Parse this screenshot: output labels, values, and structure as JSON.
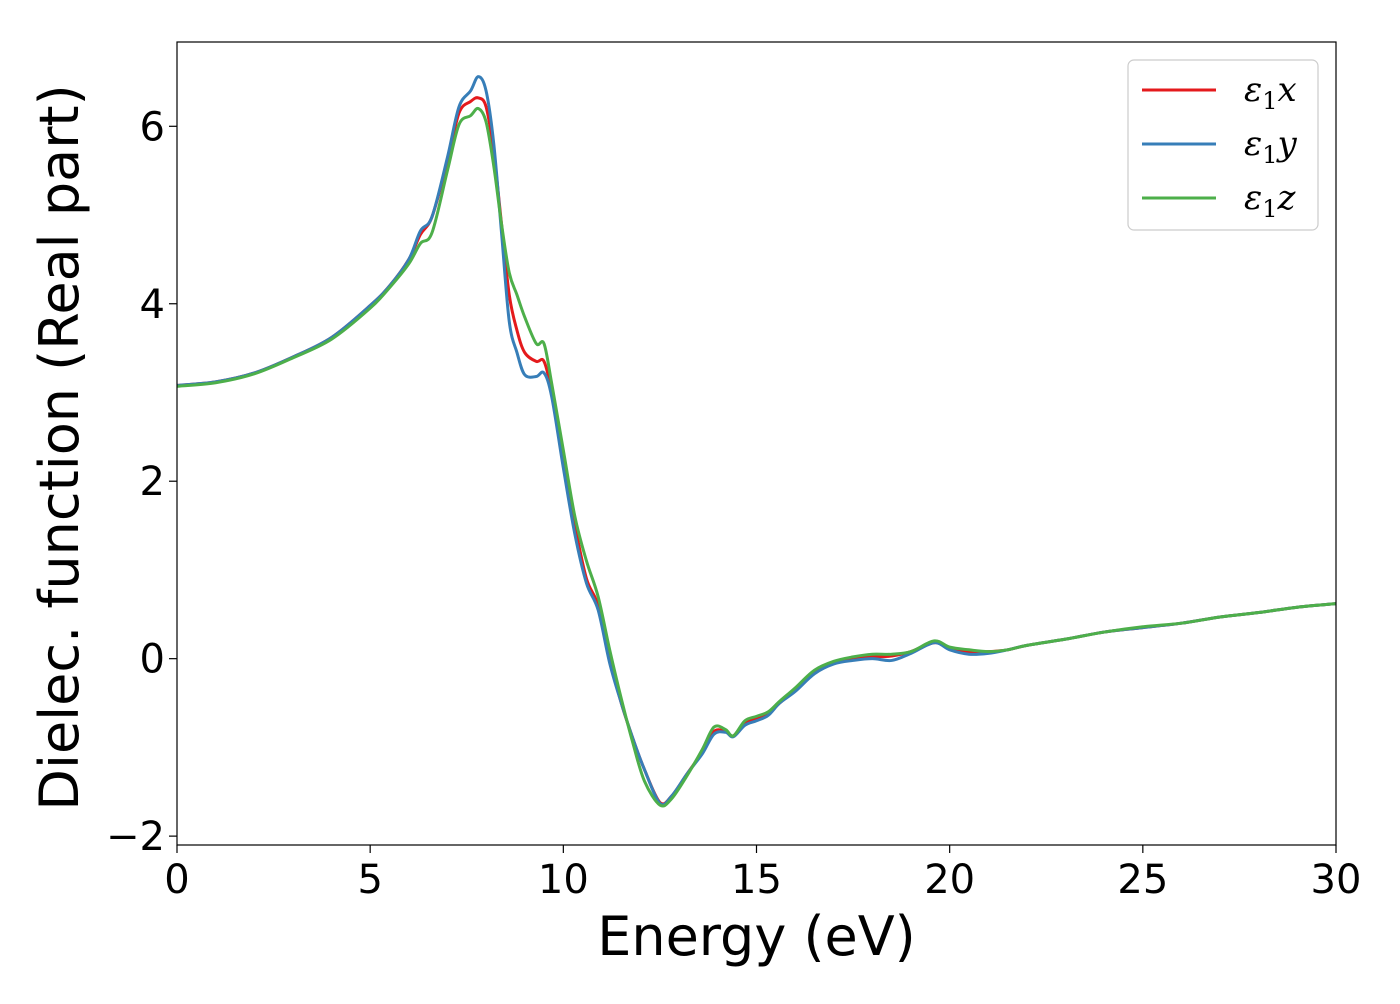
{
  "chart_data": {
    "type": "line",
    "title": "",
    "xlabel": "Energy (eV)",
    "ylabel": "Dielec. function (Real part)",
    "xlim": [
      0,
      30
    ],
    "ylim": [
      -2.1,
      6.95
    ],
    "xticks": [
      0,
      5,
      10,
      15,
      20,
      25,
      30
    ],
    "xtick_labels": [
      "0",
      "5",
      "10",
      "15",
      "20",
      "25",
      "30"
    ],
    "yticks": [
      -2,
      0,
      2,
      4,
      6
    ],
    "ytick_labels": [
      "−2",
      "0",
      "2",
      "4",
      "6"
    ],
    "grid": false,
    "legend_position": "top-right",
    "colors": {
      "x": "#e41a1c",
      "y": "#377eb8",
      "z": "#4daf4a",
      "axis": "#000000",
      "legend_border": "#cccccc"
    },
    "series": [
      {
        "name": "ε1x",
        "legend_symbol": "ε",
        "legend_sub": "1",
        "legend_var": "x",
        "color": "#e41a1c",
        "x": [
          0,
          1,
          2,
          3,
          4,
          5,
          5.5,
          6,
          6.3,
          6.6,
          7.0,
          7.3,
          7.6,
          7.8,
          8.0,
          8.2,
          8.4,
          8.6,
          8.8,
          9.0,
          9.3,
          9.5,
          9.7,
          10.0,
          10.3,
          10.6,
          10.9,
          11.2,
          11.5,
          11.8,
          12.1,
          12.5,
          12.8,
          13.2,
          13.6,
          13.9,
          14.2,
          14.4,
          14.7,
          15.0,
          15.3,
          15.6,
          16.0,
          16.5,
          17.0,
          17.5,
          18.0,
          18.5,
          19.0,
          19.6,
          20.0,
          20.5,
          21.0,
          21.5,
          22.0,
          23.0,
          24.0,
          25.0,
          26.0,
          27.0,
          28.0,
          29.0,
          30.0
        ],
        "y": [
          3.08,
          3.12,
          3.22,
          3.4,
          3.62,
          3.98,
          4.2,
          4.5,
          4.78,
          4.98,
          5.6,
          6.15,
          6.28,
          6.32,
          6.22,
          5.7,
          4.9,
          4.1,
          3.7,
          3.45,
          3.35,
          3.35,
          3.0,
          2.2,
          1.5,
          0.9,
          0.6,
          0.0,
          -0.5,
          -0.9,
          -1.25,
          -1.62,
          -1.55,
          -1.3,
          -1.05,
          -0.82,
          -0.82,
          -0.87,
          -0.72,
          -0.68,
          -0.62,
          -0.5,
          -0.35,
          -0.15,
          -0.04,
          0.0,
          0.02,
          0.03,
          0.08,
          0.18,
          0.12,
          0.08,
          0.08,
          0.1,
          0.15,
          0.22,
          0.3,
          0.35,
          0.4,
          0.47,
          0.52,
          0.58,
          0.62
        ]
      },
      {
        "name": "ε1y",
        "legend_symbol": "ε",
        "legend_sub": "1",
        "legend_var": "y",
        "color": "#377eb8",
        "x": [
          0,
          1,
          2,
          3,
          4,
          5,
          5.5,
          6,
          6.3,
          6.6,
          7.0,
          7.3,
          7.6,
          7.8,
          8.0,
          8.2,
          8.4,
          8.6,
          8.8,
          9.0,
          9.3,
          9.5,
          9.7,
          10.0,
          10.3,
          10.6,
          10.9,
          11.2,
          11.5,
          11.8,
          12.1,
          12.5,
          12.8,
          13.2,
          13.6,
          13.9,
          14.2,
          14.4,
          14.7,
          15.0,
          15.3,
          15.6,
          16.0,
          16.5,
          17.0,
          17.5,
          18.0,
          18.5,
          19.0,
          19.6,
          20.0,
          20.5,
          21.0,
          21.5,
          22.0,
          23.0,
          24.0,
          25.0,
          26.0,
          27.0,
          28.0,
          29.0,
          30.0
        ],
        "y": [
          3.08,
          3.12,
          3.22,
          3.4,
          3.62,
          3.98,
          4.2,
          4.5,
          4.82,
          4.98,
          5.65,
          6.22,
          6.4,
          6.56,
          6.4,
          5.8,
          4.8,
          3.8,
          3.45,
          3.2,
          3.18,
          3.22,
          2.95,
          2.15,
          1.4,
          0.85,
          0.55,
          -0.05,
          -0.5,
          -0.9,
          -1.25,
          -1.63,
          -1.55,
          -1.3,
          -1.07,
          -0.85,
          -0.83,
          -0.88,
          -0.75,
          -0.7,
          -0.64,
          -0.5,
          -0.37,
          -0.17,
          -0.06,
          -0.02,
          0.0,
          -0.02,
          0.06,
          0.18,
          0.1,
          0.05,
          0.06,
          0.1,
          0.15,
          0.22,
          0.3,
          0.35,
          0.4,
          0.47,
          0.52,
          0.58,
          0.62
        ]
      },
      {
        "name": "ε1z",
        "legend_symbol": "ε",
        "legend_sub": "1",
        "legend_var": "z",
        "color": "#4daf4a",
        "x": [
          0,
          1,
          2,
          3,
          4,
          5,
          5.5,
          6,
          6.3,
          6.6,
          7.0,
          7.3,
          7.6,
          7.8,
          8.0,
          8.2,
          8.4,
          8.6,
          8.8,
          9.0,
          9.3,
          9.5,
          9.7,
          10.0,
          10.3,
          10.6,
          10.9,
          11.2,
          11.5,
          11.8,
          12.1,
          12.5,
          12.8,
          13.2,
          13.6,
          13.9,
          14.2,
          14.4,
          14.7,
          15.0,
          15.3,
          15.6,
          16.0,
          16.5,
          17.0,
          17.5,
          18.0,
          18.5,
          19.0,
          19.6,
          20.0,
          20.5,
          21.0,
          21.5,
          22.0,
          23.0,
          24.0,
          25.0,
          26.0,
          27.0,
          28.0,
          29.0,
          30.0
        ],
        "y": [
          3.07,
          3.11,
          3.21,
          3.39,
          3.6,
          3.95,
          4.18,
          4.45,
          4.68,
          4.8,
          5.5,
          6.02,
          6.12,
          6.2,
          6.05,
          5.55,
          4.9,
          4.35,
          4.1,
          3.85,
          3.55,
          3.55,
          3.1,
          2.35,
          1.6,
          1.1,
          0.7,
          0.1,
          -0.45,
          -0.95,
          -1.38,
          -1.65,
          -1.58,
          -1.32,
          -1.02,
          -0.77,
          -0.8,
          -0.87,
          -0.7,
          -0.65,
          -0.6,
          -0.48,
          -0.33,
          -0.13,
          -0.03,
          0.02,
          0.05,
          0.05,
          0.08,
          0.2,
          0.13,
          0.1,
          0.08,
          0.1,
          0.15,
          0.22,
          0.3,
          0.36,
          0.4,
          0.47,
          0.52,
          0.58,
          0.62
        ]
      }
    ]
  }
}
